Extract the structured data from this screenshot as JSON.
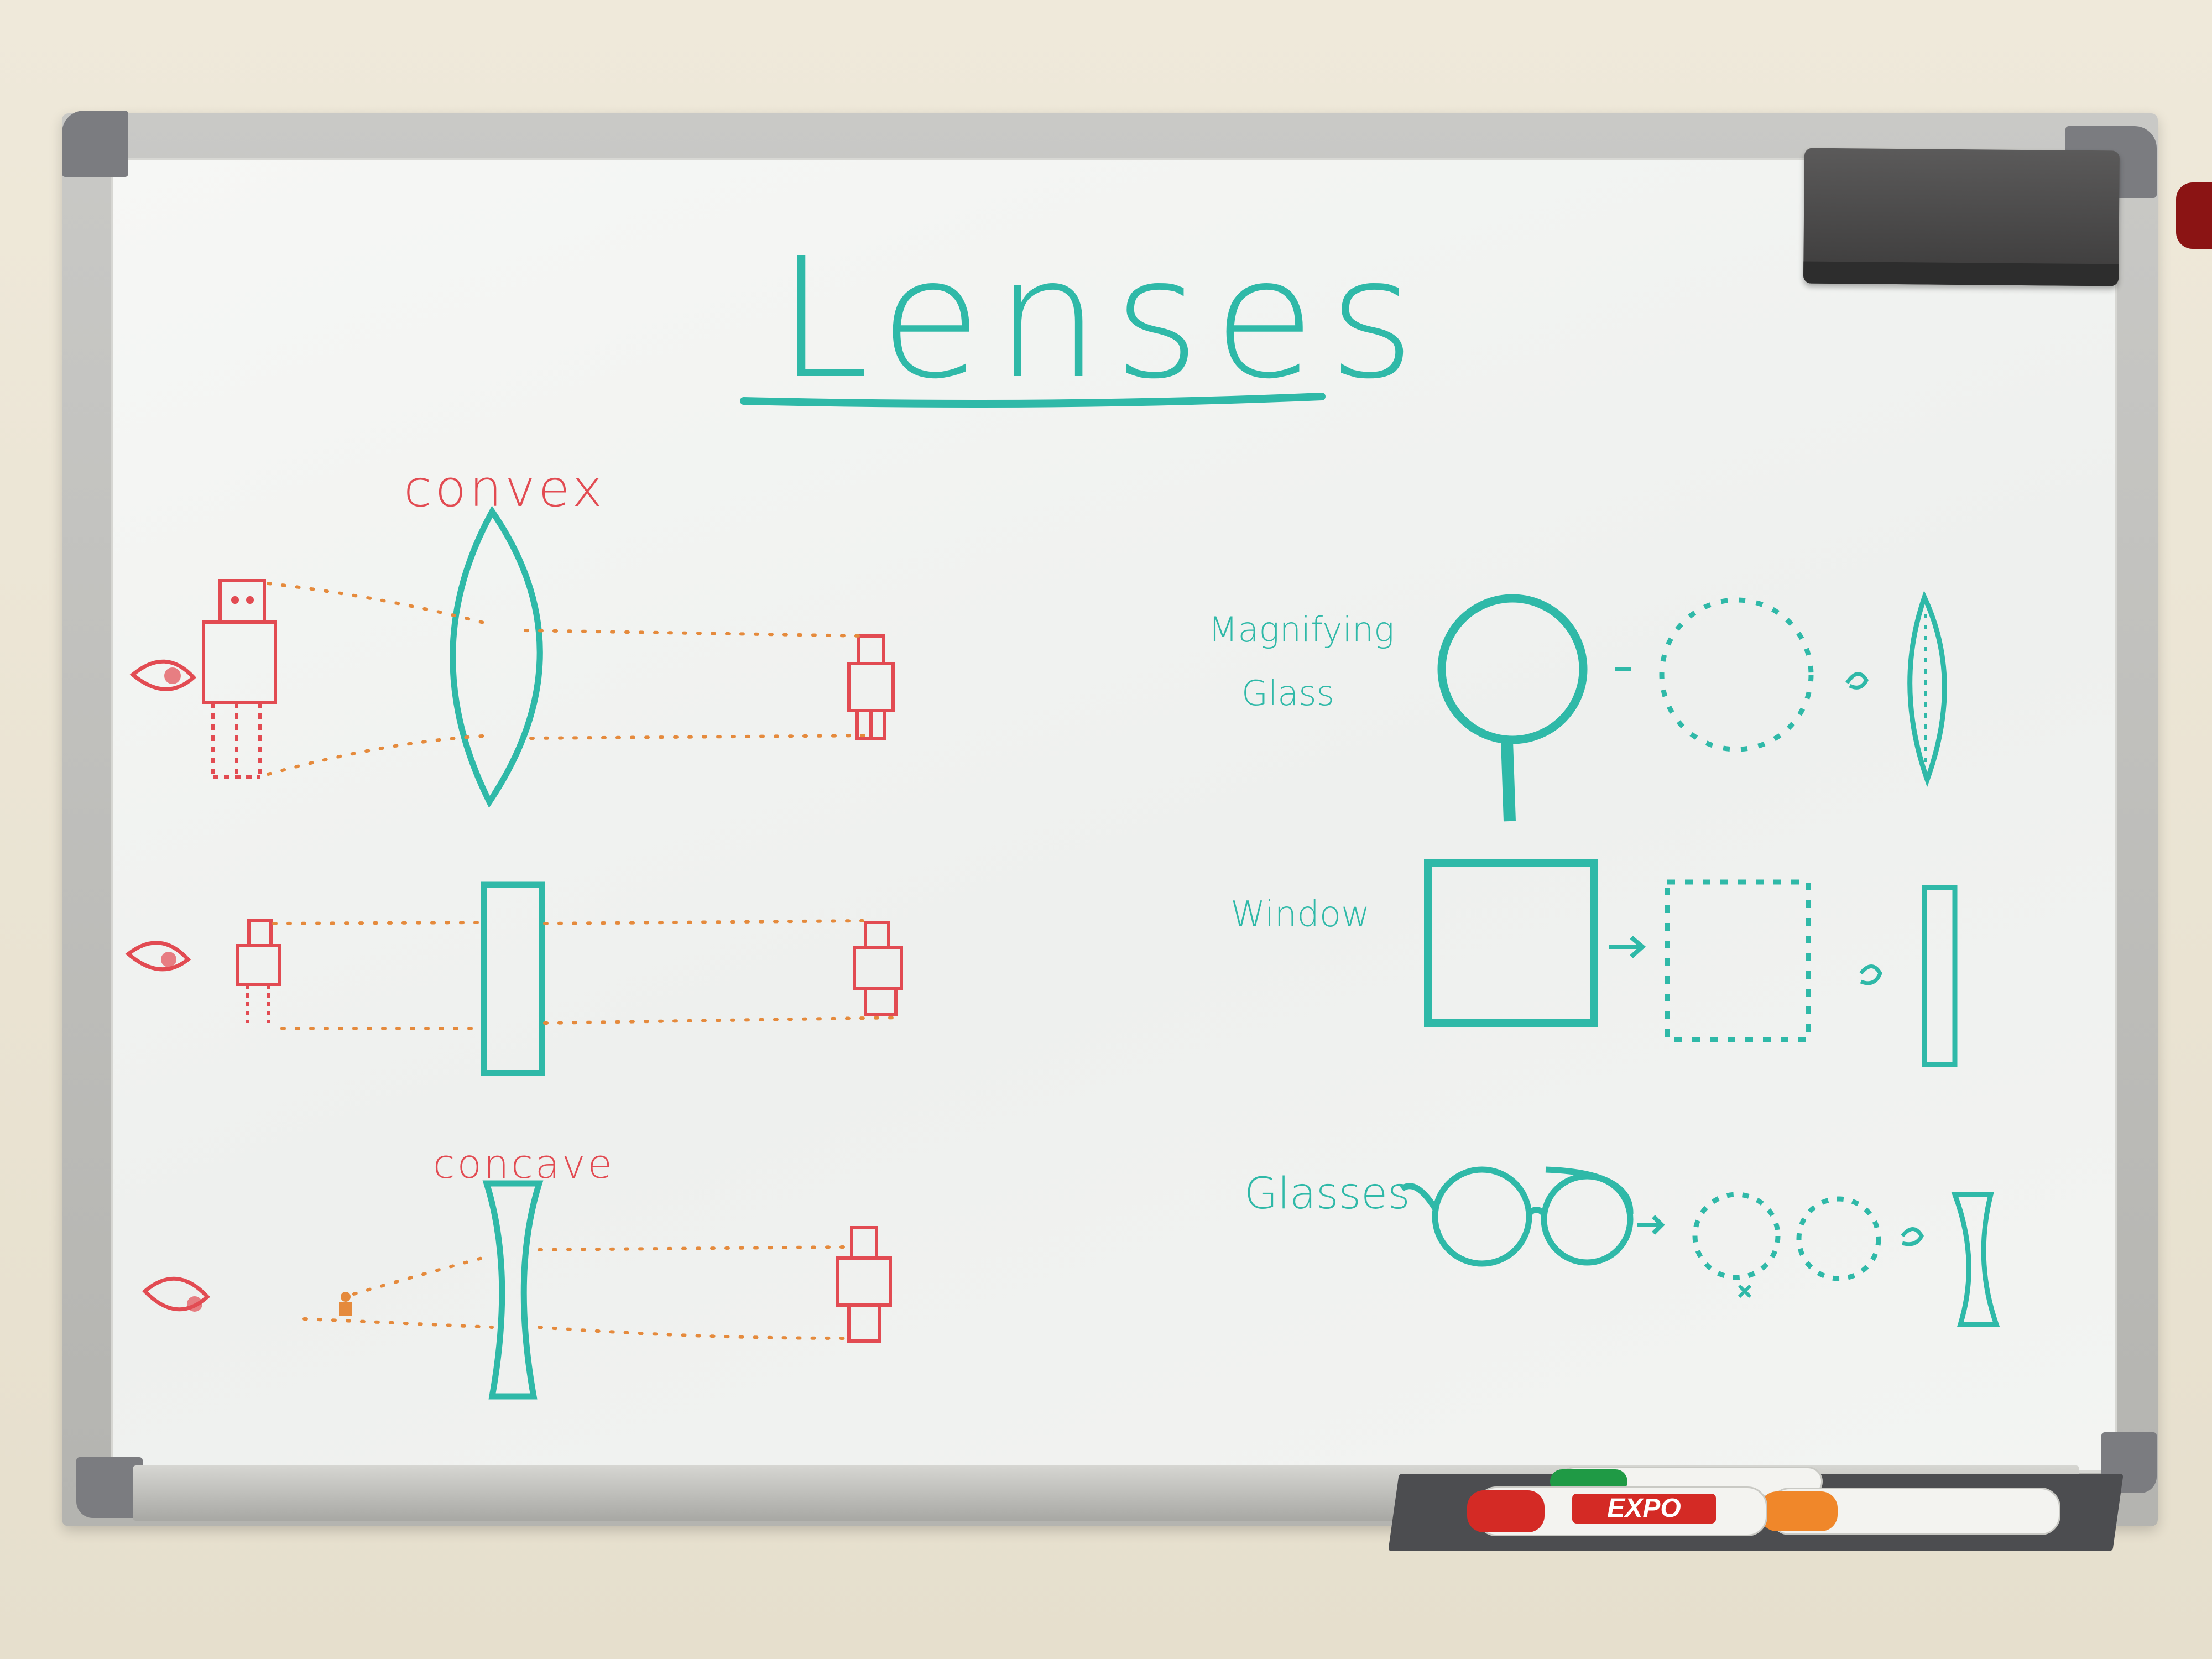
{
  "board": {
    "title": "Lenses",
    "labels": {
      "convex": "convex",
      "concave": "concave",
      "magnifying": "Magnifying",
      "glass": "Glass",
      "window": "Window",
      "glasses": "Glasses"
    }
  },
  "markers": {
    "red_label": "EXPO",
    "red_cap_color": "#d42a25",
    "green_cap_color": "#1f9a45",
    "orange_cap_color": "#f0872a"
  },
  "colors": {
    "teal": "#2fb9a8",
    "red": "#e24b52",
    "orange": "#e58a3c"
  }
}
